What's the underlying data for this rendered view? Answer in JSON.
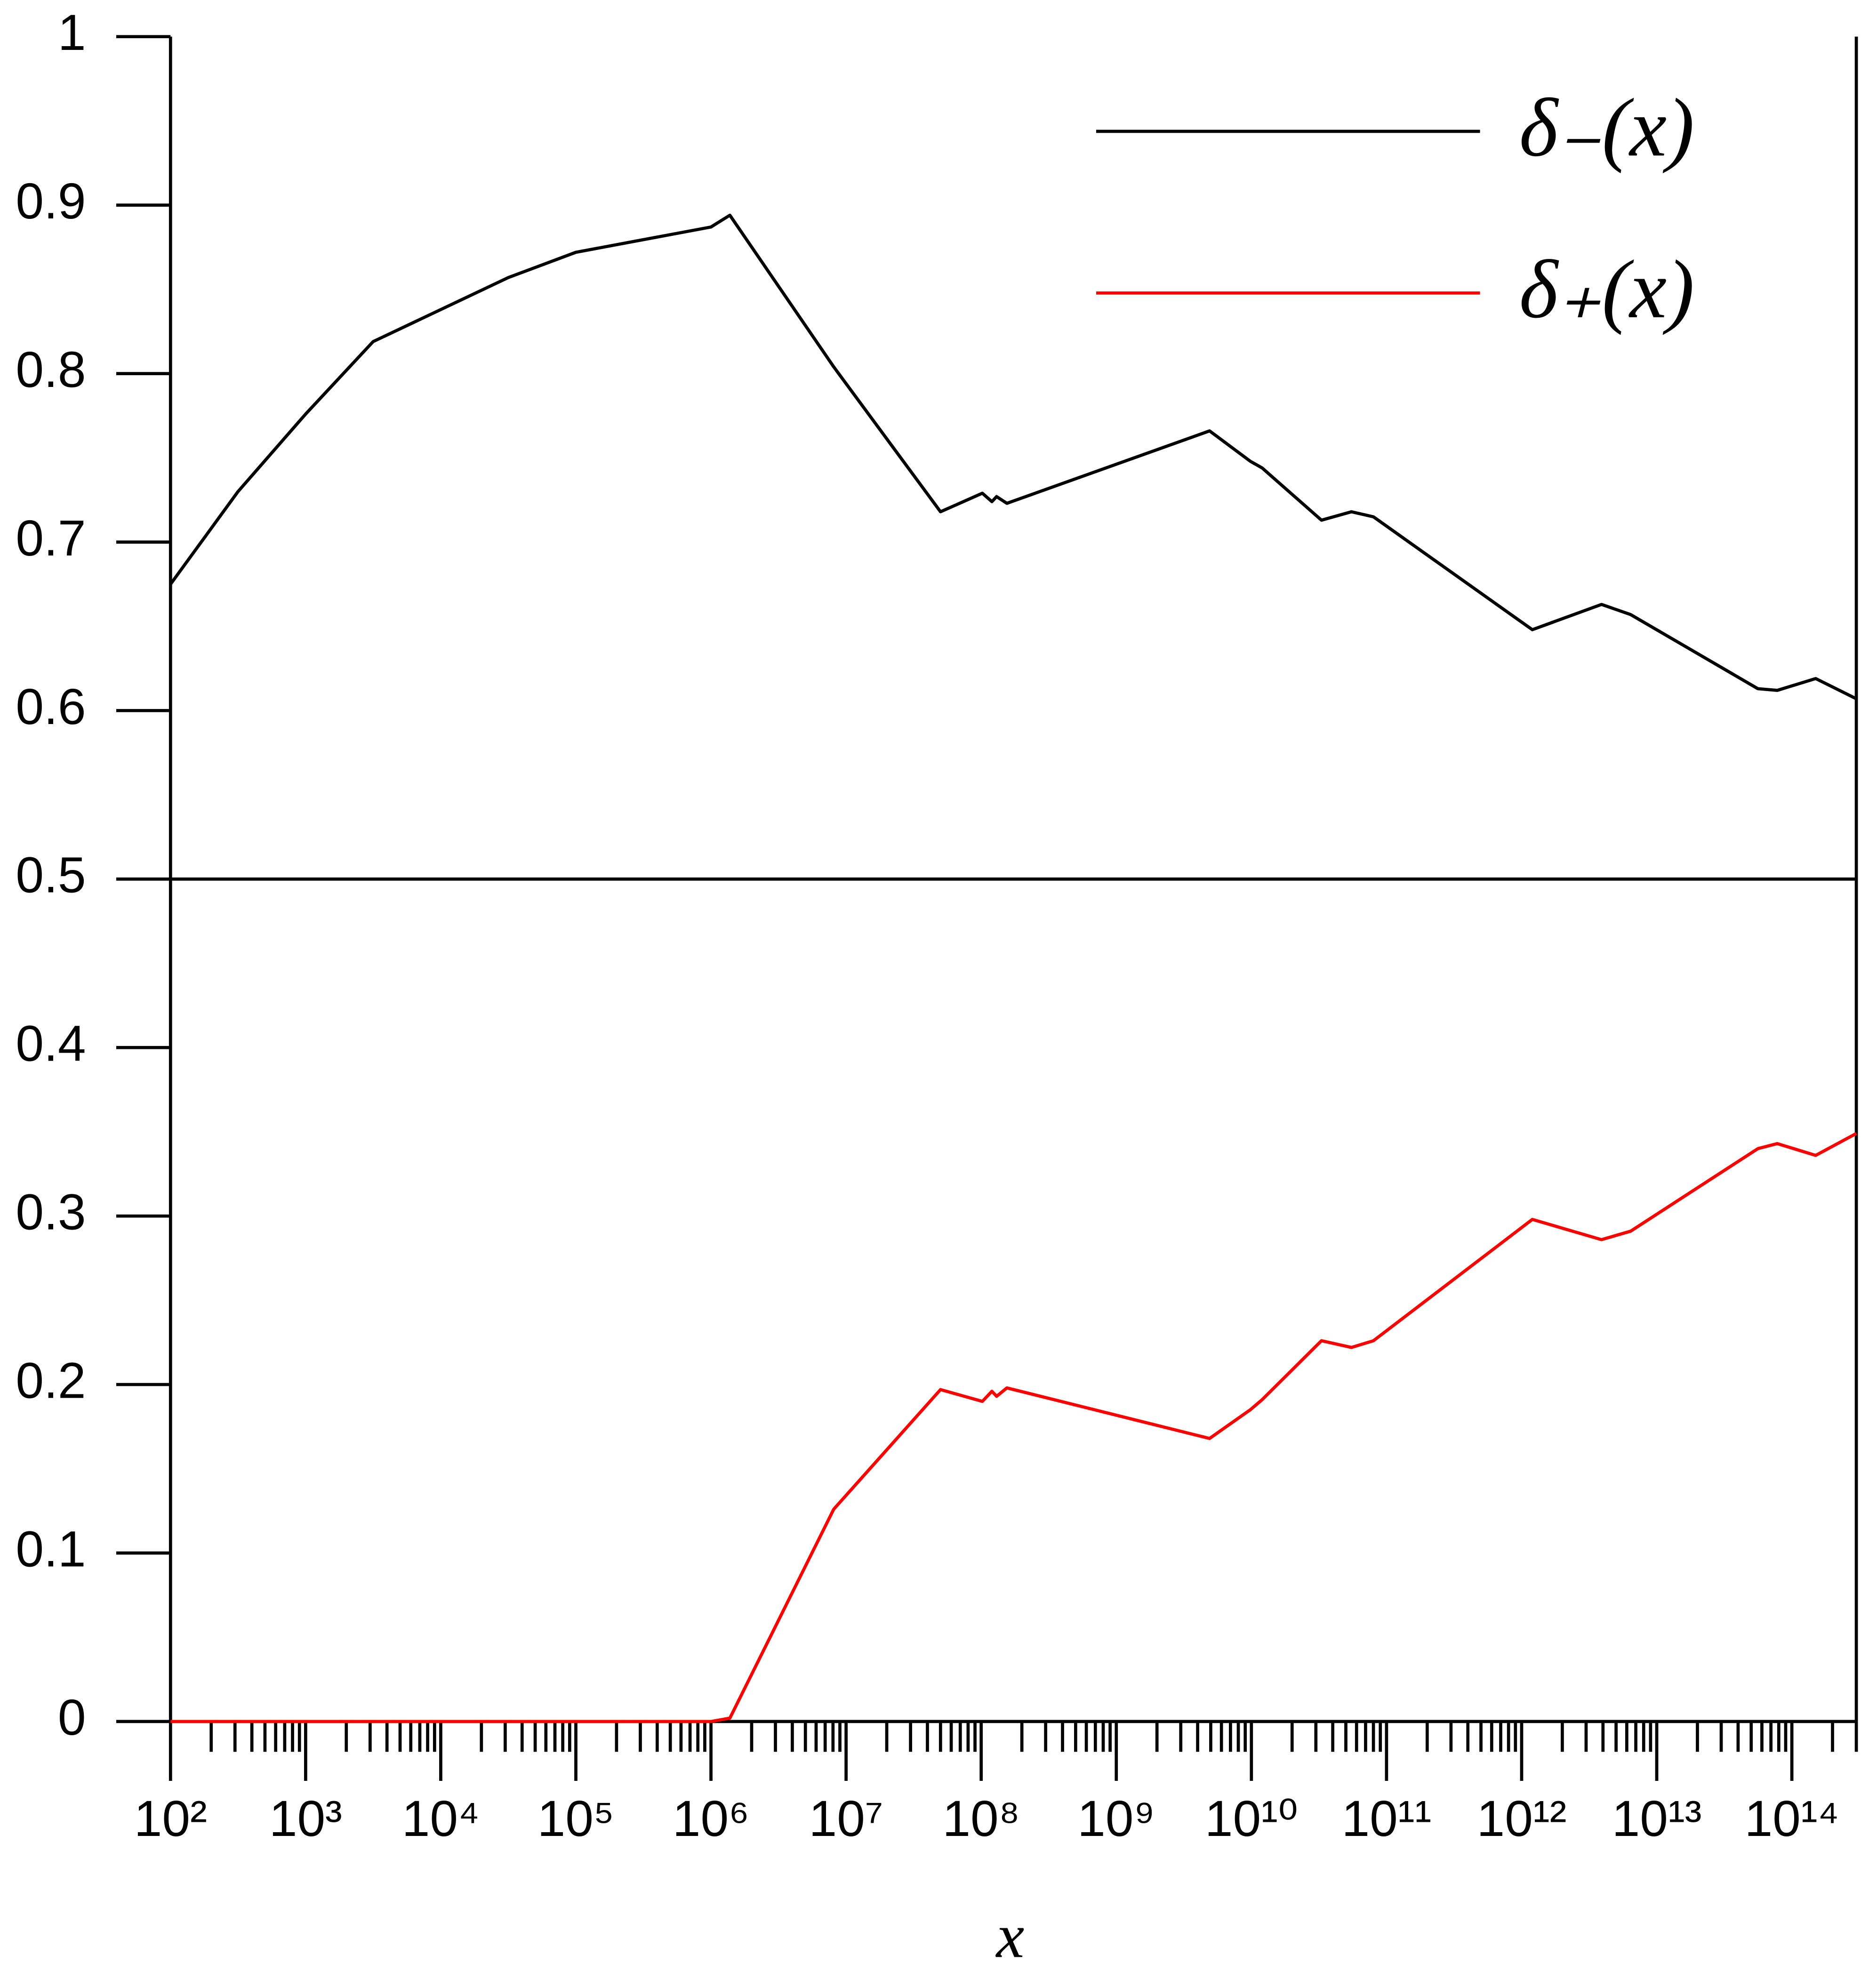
{
  "chart_data": {
    "type": "line",
    "x_label": "x",
    "xscale": "log",
    "x": [
      100,
      316,
      1000,
      3160,
      10000,
      31600,
      100000,
      1000000,
      1380000,
      8100000,
      50000000,
      102000000,
      120000000,
      130000000,
      155000000,
      4900000000,
      9800000000,
      12000000000,
      33000000000,
      55000000000,
      80000000000,
      1200000000000,
      3900000000000,
      6400000000000,
      56000000000000,
      78000000000000,
      150000000000000,
      300000000000000
    ],
    "series": [
      {
        "name": "δ₋(x)",
        "color": "#000000",
        "values": [
          0.675,
          0.73,
          0.776,
          0.819,
          0.838,
          0.857,
          0.872,
          0.887,
          0.894,
          0.804,
          0.718,
          0.729,
          0.724,
          0.727,
          0.723,
          0.766,
          0.748,
          0.744,
          0.713,
          0.718,
          0.715,
          0.648,
          0.663,
          0.657,
          0.613,
          0.612,
          0.619,
          0.607
        ]
      },
      {
        "name": "δ₊(x)",
        "color": "#ff0000",
        "values": [
          0,
          0,
          0,
          0,
          0,
          0,
          0,
          0,
          0.002,
          0.126,
          0.197,
          0.19,
          0.196,
          0.193,
          0.198,
          0.168,
          0.185,
          0.191,
          0.226,
          0.222,
          0.226,
          0.298,
          0.286,
          0.291,
          0.34,
          0.343,
          0.336,
          0.349
        ]
      }
    ],
    "xlim": [
      100,
      300000000000000
    ],
    "xticks": [
      {
        "value": 100,
        "label": "10²"
      },
      {
        "value": 1000,
        "label": "10³"
      },
      {
        "value": 10000,
        "label": "10⁴"
      },
      {
        "value": 100000,
        "label": "10⁵"
      },
      {
        "value": 1000000,
        "label": "10⁶"
      },
      {
        "value": 10000000,
        "label": "10⁷"
      },
      {
        "value": 100000000,
        "label": "10⁸"
      },
      {
        "value": 1000000000,
        "label": "10⁹"
      },
      {
        "value": 10000000000,
        "label": "10¹⁰"
      },
      {
        "value": 100000000000,
        "label": "10¹¹"
      },
      {
        "value": 1000000000000,
        "label": "10¹²"
      },
      {
        "value": 10000000000000,
        "label": "10¹³"
      },
      {
        "value": 100000000000000,
        "label": "10¹⁴"
      }
    ],
    "minor_ticks": true,
    "ylim": [
      0,
      1
    ],
    "yticks": [
      0,
      0.1,
      0.2,
      0.3,
      0.4,
      0.5,
      0.6,
      0.7,
      0.8,
      0.9,
      1
    ],
    "hline": 0.5,
    "legend": "upper right",
    "grid": false
  }
}
